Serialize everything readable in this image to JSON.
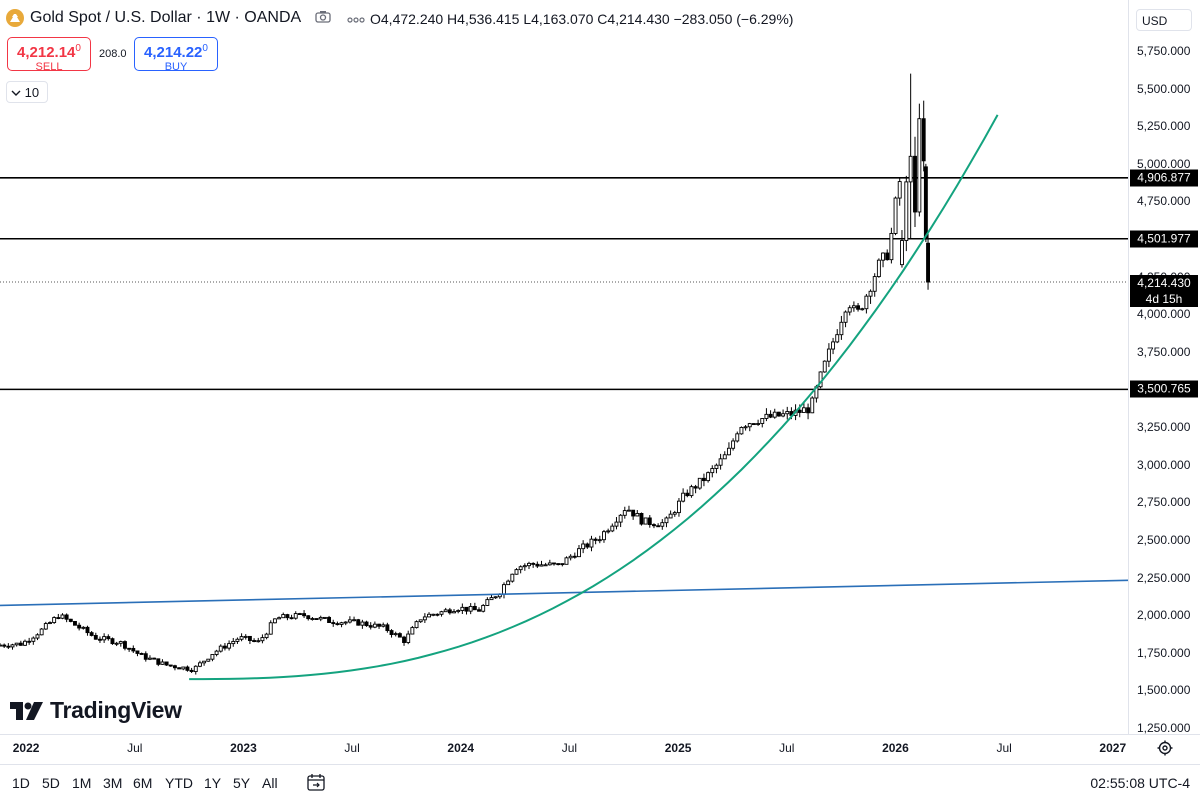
{
  "header": {
    "symbol_title": "Gold Spot / U.S. Dollar · 1W · OANDA",
    "ohlc_text": "O4,472.240 H4,536.415 L4,163.070 C4,214.430 −283.050 (−6.29%)",
    "icons": [
      "gold-symbol-icon",
      "camera-icon",
      "more-icon"
    ]
  },
  "trade": {
    "sell_price_main": "4,212.14",
    "sell_price_sup": "0",
    "sell_label": "SELL",
    "spread": "208.0",
    "buy_price_main": "4,214.22",
    "buy_price_sup": "0",
    "buy_label": "BUY"
  },
  "indicator_toggle": "10",
  "currency": "USD",
  "watermark": "TradingView",
  "chart_data": {
    "type": "candlestick",
    "title": "Gold Spot / U.S. Dollar · 1W · OANDA",
    "xlabel": "",
    "ylabel": "USD",
    "ylim": [
      1200,
      5950
    ],
    "xlim": [
      2021.88,
      2027.07
    ],
    "y_ticks": [
      1250,
      1500,
      1750,
      2000,
      2250,
      2500,
      2750,
      3000,
      3250,
      3500,
      3750,
      4000,
      4250,
      4500,
      4750,
      5000,
      5250,
      5500,
      5750
    ],
    "y_tick_labels": [
      "1,250.000",
      "1,500.000",
      "1,750.000",
      "2,000.000",
      "2,250.000",
      "2,500.000",
      "2,750.000",
      "3,000.000",
      "3,250.000",
      "3,500.000",
      "3,750.000",
      "4,000.000",
      "4,250.000",
      "4,500.000",
      "4,750.000",
      "5,000.000",
      "5,250.000",
      "5,500.000",
      "5,750.000"
    ],
    "x_ticks": [
      {
        "label": "2022",
        "t": 2022.0,
        "major": true
      },
      {
        "label": "Jul",
        "t": 2022.5,
        "major": false
      },
      {
        "label": "2023",
        "t": 2023.0,
        "major": true
      },
      {
        "label": "Jul",
        "t": 2023.5,
        "major": false
      },
      {
        "label": "2024",
        "t": 2024.0,
        "major": true
      },
      {
        "label": "Jul",
        "t": 2024.5,
        "major": false
      },
      {
        "label": "2025",
        "t": 2025.0,
        "major": true
      },
      {
        "label": "Jul",
        "t": 2025.5,
        "major": false
      },
      {
        "label": "2026",
        "t": 2026.0,
        "major": true
      },
      {
        "label": "Jul",
        "t": 2026.5,
        "major": false
      },
      {
        "label": "2027",
        "t": 2027.0,
        "major": true
      }
    ],
    "anchors": [
      [
        2021.88,
        1800
      ],
      [
        2022.0,
        1810
      ],
      [
        2022.09,
        1900
      ],
      [
        2022.17,
        2000
      ],
      [
        2022.25,
        1930
      ],
      [
        2022.34,
        1850
      ],
      [
        2022.45,
        1820
      ],
      [
        2022.55,
        1730
      ],
      [
        2022.66,
        1670
      ],
      [
        2022.79,
        1640
      ],
      [
        2022.88,
        1750
      ],
      [
        2023.0,
        1850
      ],
      [
        2023.09,
        1820
      ],
      [
        2023.17,
        1980
      ],
      [
        2023.3,
        2000
      ],
      [
        2023.42,
        1960
      ],
      [
        2023.55,
        1950
      ],
      [
        2023.67,
        1915
      ],
      [
        2023.76,
        1830
      ],
      [
        2023.84,
        1990
      ],
      [
        2023.93,
        2020
      ],
      [
        2024.0,
        2050
      ],
      [
        2024.1,
        2030
      ],
      [
        2024.2,
        2160
      ],
      [
        2024.27,
        2320
      ],
      [
        2024.35,
        2340
      ],
      [
        2024.47,
        2330
      ],
      [
        2024.55,
        2420
      ],
      [
        2024.66,
        2520
      ],
      [
        2024.78,
        2720
      ],
      [
        2024.86,
        2620
      ],
      [
        2024.96,
        2610
      ],
      [
        2025.05,
        2800
      ],
      [
        2025.15,
        2920
      ],
      [
        2025.25,
        3080
      ],
      [
        2025.3,
        3260
      ],
      [
        2025.38,
        3300
      ],
      [
        2025.46,
        3320
      ],
      [
        2025.55,
        3340
      ],
      [
        2025.63,
        3380
      ],
      [
        2025.68,
        3610
      ],
      [
        2025.74,
        3850
      ],
      [
        2025.8,
        4100
      ],
      [
        2025.84,
        3990
      ],
      [
        2025.88,
        4110
      ],
      [
        2025.94,
        4320
      ],
      [
        2025.99,
        4420
      ],
      [
        2026.03,
        4840
      ],
      [
        2026.06,
        4980
      ],
      [
        2026.09,
        5330
      ],
      [
        2026.11,
        5000
      ],
      [
        2026.13,
        4472
      ],
      [
        2026.15,
        4214
      ]
    ],
    "hlines": [
      {
        "value": 4906.877,
        "label": "4,906.877"
      },
      {
        "value": 4501.977,
        "label": "4,501.977"
      },
      {
        "value": 3500.765,
        "label": "3,500.765"
      }
    ],
    "last_price": {
      "value": 4214.43,
      "label": "4,214.430",
      "countdown": "4d 15h"
    },
    "trendline": {
      "color": "#2a6fb8",
      "points": [
        [
          2021.88,
          2065
        ],
        [
          2027.07,
          2232
        ]
      ]
    },
    "curve": {
      "color": "#14a37f",
      "start": [
        2022.75,
        1575
      ],
      "end": [
        2026.47,
        5325
      ]
    },
    "highlighted_candles": [
      {
        "t": 2026.03,
        "o": 4330,
        "h": 4560,
        "l": 4310,
        "c": 4490
      },
      {
        "t": 2026.05,
        "o": 4490,
        "h": 4920,
        "l": 4420,
        "c": 4880
      },
      {
        "t": 2026.07,
        "o": 4880,
        "h": 5600,
        "l": 4500,
        "c": 5050
      },
      {
        "t": 2026.09,
        "o": 5050,
        "h": 5180,
        "l": 4580,
        "c": 4680
      },
      {
        "t": 2026.11,
        "o": 4680,
        "h": 5400,
        "l": 4650,
        "c": 5300
      },
      {
        "t": 2026.13,
        "o": 5300,
        "h": 5420,
        "l": 4950,
        "c": 5020
      },
      {
        "t": 2026.14,
        "o": 4980,
        "h": 5000,
        "l": 4480,
        "c": 4500
      },
      {
        "t": 2026.15,
        "o": 4472.24,
        "h": 4536.415,
        "l": 4163.07,
        "c": 4214.43
      }
    ]
  },
  "time_axis": {
    "settings_icon": "gear-icon"
  },
  "bottom_bar": {
    "ranges": [
      "1D",
      "5D",
      "1M",
      "3M",
      "6M",
      "YTD",
      "1Y",
      "5Y",
      "All"
    ],
    "calendar_icon": "calendar-range-icon",
    "clock": "02:55:08 UTC-4"
  }
}
